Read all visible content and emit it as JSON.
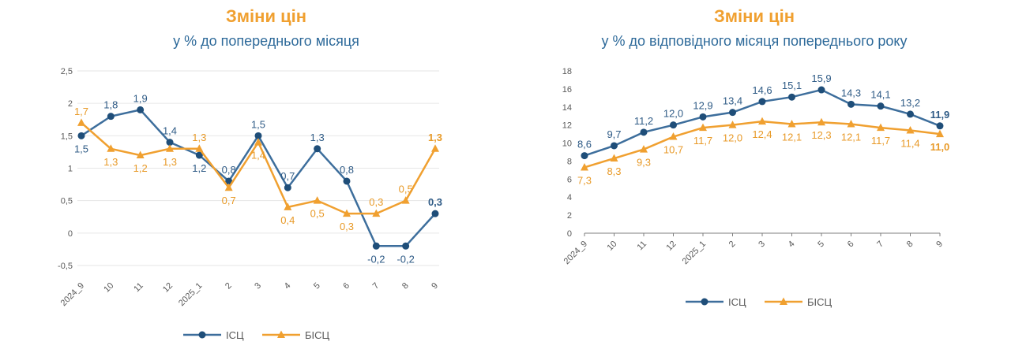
{
  "colors": {
    "ics": "#3d6e9c",
    "ics_marker": "#1f4e79",
    "bisc": "#f0a030",
    "ics_text": "#2f5b86",
    "bisc_text": "#e89a28"
  },
  "chart_data": [
    {
      "type": "line",
      "title": "Зміни цін",
      "subtitle": "у % до попереднього місяця",
      "categories": [
        "2024_9",
        "10",
        "11",
        "12",
        "2025_1",
        "2",
        "3",
        "4",
        "5",
        "6",
        "7",
        "8",
        "9"
      ],
      "ylim": [
        -0.5,
        2.5
      ],
      "yticks": [
        "-0,5",
        "0",
        "0,5",
        "1",
        "1,5",
        "2",
        "2,5"
      ],
      "ytick_values": [
        -0.5,
        0,
        0.5,
        1,
        1.5,
        2,
        2.5
      ],
      "grid": true,
      "legend": "bottom",
      "series": [
        {
          "name": "ІСЦ",
          "marker": "circle",
          "values": [
            1.5,
            1.8,
            1.9,
            1.4,
            1.2,
            0.8,
            1.5,
            0.7,
            1.3,
            0.8,
            -0.2,
            -0.2,
            0.3
          ],
          "labels": [
            "1,5",
            "1,8",
            "1,9",
            "1,4",
            "1,2",
            "0,8",
            "1,5",
            "0,7",
            "1,3",
            "0,8",
            "-0,2",
            "-0,2",
            "0,3"
          ],
          "label_pos": [
            "below",
            "above",
            "above",
            "above",
            "below",
            "above",
            "above",
            "above",
            "above",
            "above",
            "below",
            "below",
            "above"
          ]
        },
        {
          "name": "БІСЦ",
          "marker": "triangle",
          "values": [
            1.7,
            1.3,
            1.2,
            1.3,
            1.3,
            0.7,
            1.4,
            0.4,
            0.5,
            0.3,
            0.3,
            0.5,
            1.3
          ],
          "labels": [
            "1,7",
            "1,3",
            "1,2",
            "1,3",
            "1,3",
            "0,7",
            "1,4",
            "0,4",
            "0,5",
            "0,3",
            "0,3",
            "0,5",
            "1,3"
          ],
          "label_pos": [
            "above",
            "below",
            "below",
            "below",
            "above",
            "below",
            "below",
            "below",
            "below",
            "below",
            "above",
            "above",
            "above"
          ]
        }
      ]
    },
    {
      "type": "line",
      "title": "Зміни цін",
      "subtitle": "у % до відповідного місяця попереднього року",
      "categories": [
        "2024_9",
        "10",
        "11",
        "12",
        "2025_1",
        "2",
        "3",
        "4",
        "5",
        "6",
        "7",
        "8",
        "9"
      ],
      "ylim": [
        0,
        18
      ],
      "yticks": [
        "0",
        "2",
        "4",
        "6",
        "8",
        "10",
        "12",
        "14",
        "16",
        "18"
      ],
      "ytick_values": [
        0,
        2,
        4,
        6,
        8,
        10,
        12,
        14,
        16,
        18
      ],
      "grid": false,
      "legend": "bottom",
      "series": [
        {
          "name": "ІСЦ",
          "marker": "circle",
          "values": [
            8.6,
            9.7,
            11.2,
            12.0,
            12.9,
            13.4,
            14.6,
            15.1,
            15.9,
            14.3,
            14.1,
            13.2,
            11.9
          ],
          "labels": [
            "8,6",
            "9,7",
            "11,2",
            "12,0",
            "12,9",
            "13,4",
            "14,6",
            "15,1",
            "15,9",
            "14,3",
            "14,1",
            "13,2",
            "11,9"
          ],
          "label_pos": [
            "above",
            "above",
            "above",
            "above",
            "above",
            "above",
            "above",
            "above",
            "above",
            "above",
            "above",
            "above",
            "above"
          ]
        },
        {
          "name": "БІСЦ",
          "marker": "triangle",
          "values": [
            7.3,
            8.3,
            9.3,
            10.7,
            11.7,
            12.0,
            12.4,
            12.1,
            12.3,
            12.1,
            11.7,
            11.4,
            11.0
          ],
          "labels": [
            "7,3",
            "8,3",
            "9,3",
            "10,7",
            "11,7",
            "12,0",
            "12,4",
            "12,1",
            "12,3",
            "12,1",
            "11,7",
            "11,4",
            "11,0"
          ],
          "label_pos": [
            "below",
            "below",
            "below",
            "below",
            "below",
            "below",
            "below",
            "below",
            "below",
            "below",
            "below",
            "below",
            "below"
          ]
        }
      ]
    }
  ]
}
